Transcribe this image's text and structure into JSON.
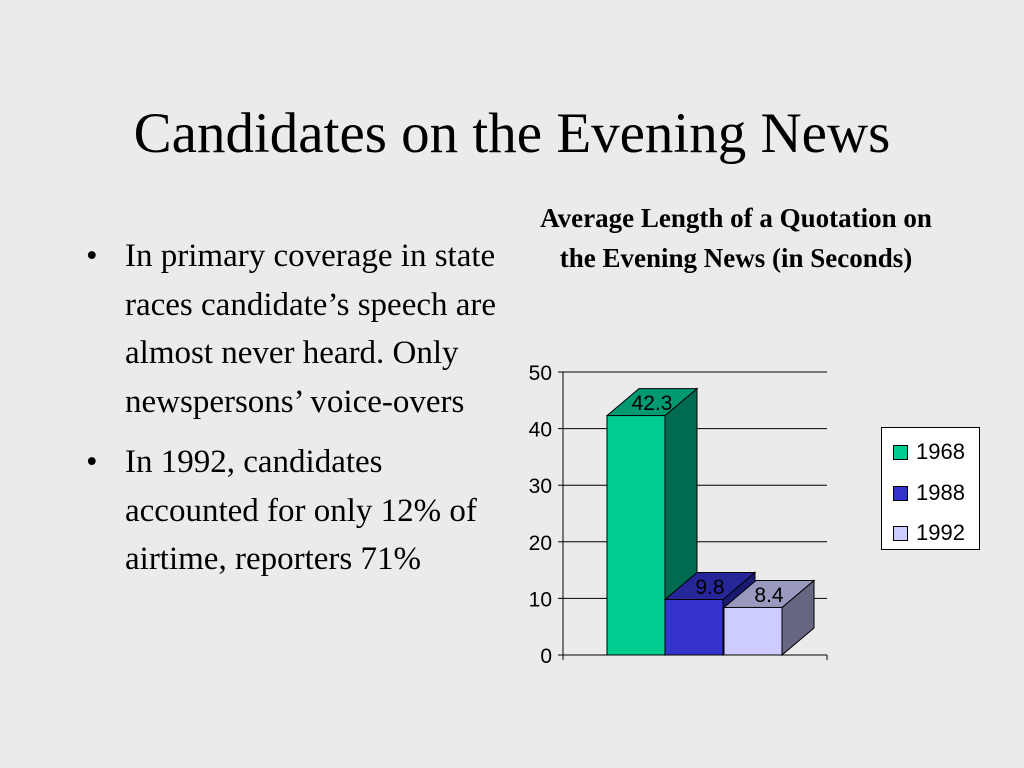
{
  "slide": {
    "title": "Candidates on the Evening News",
    "bullets": [
      "In primary coverage in state races candidate’s speech are almost never heard. Only newspersons’ voice-overs",
      "In 1992, candidates accounted for only 12% of airtime, reporters 71%"
    ]
  },
  "chart_data": {
    "type": "bar",
    "title": "Average Length of a Quotation on the Evening News (in Seconds)",
    "categories": [
      "1968",
      "1988",
      "1992"
    ],
    "values": [
      42.3,
      9.8,
      8.4
    ],
    "data_labels": [
      "42.3",
      "9.8",
      "8.4"
    ],
    "ylim": [
      0,
      50
    ],
    "yticks": [
      "0",
      "10",
      "20",
      "30",
      "40",
      "50"
    ],
    "grid": true,
    "legend_position": "right",
    "colors": [
      "#00cc8f",
      "#3333cc",
      "#ccccff"
    ],
    "side_colors": [
      "#006b4f",
      "#1a1a73",
      "#666680"
    ],
    "top_colors": [
      "#009970",
      "#262699",
      "#9999bf"
    ],
    "xlabel": "",
    "ylabel": ""
  }
}
